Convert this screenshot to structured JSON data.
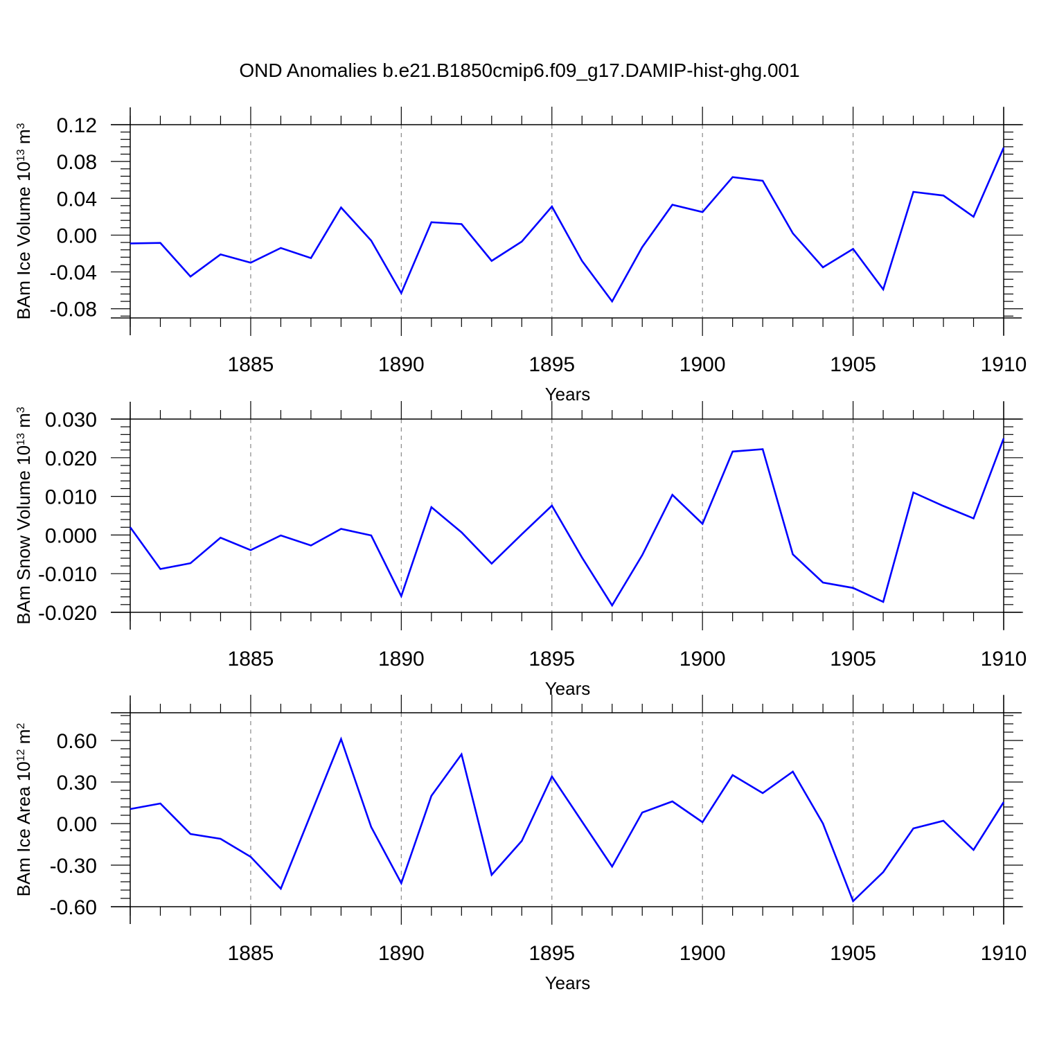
{
  "title": "OND Anomalies b.e21.B1850cmip6.f09_g17.DAMIP-hist-ghg.001",
  "line_color": "#0000ff",
  "chart_data": [
    {
      "type": "line",
      "ylabel_main": "BAm Ice Volume 10",
      "ylabel_exp": "13",
      "ylabel_unit": "m",
      "ylabel_unit_exp": "3",
      "xlabel": "Years",
      "xlim": [
        1881,
        1910
      ],
      "ylim": [
        -0.09,
        0.12
      ],
      "x_ticks": [
        1885,
        1890,
        1895,
        1900,
        1905,
        1910
      ],
      "y_ticks": [
        -0.08,
        -0.04,
        0.0,
        0.04,
        0.08,
        0.12
      ],
      "y_tick_labels": [
        "-0.08",
        "-0.04",
        "0.00",
        "0.04",
        "0.08",
        "0.12"
      ],
      "x": [
        1881,
        1882,
        1883,
        1884,
        1885,
        1886,
        1887,
        1888,
        1889,
        1890,
        1891,
        1892,
        1893,
        1894,
        1895,
        1896,
        1897,
        1898,
        1899,
        1900,
        1901,
        1902,
        1903,
        1904,
        1905,
        1906,
        1907,
        1908,
        1909,
        1910
      ],
      "series": [
        {
          "values": [
            -0.009,
            -0.0085,
            -0.045,
            -0.021,
            -0.03,
            -0.014,
            -0.025,
            0.03,
            -0.006,
            -0.063,
            0.014,
            0.012,
            -0.028,
            -0.007,
            0.031,
            -0.028,
            -0.072,
            -0.013,
            0.033,
            0.025,
            0.063,
            0.059,
            0.002,
            -0.035,
            -0.015,
            -0.059,
            0.047,
            0.043,
            0.02,
            0.095
          ]
        }
      ]
    },
    {
      "type": "line",
      "ylabel_main": "BAm Snow Volume 10",
      "ylabel_exp": "13",
      "ylabel_unit": "m",
      "ylabel_unit_exp": "3",
      "xlabel": "Years",
      "xlim": [
        1881,
        1910
      ],
      "ylim": [
        -0.02,
        0.03
      ],
      "x_ticks": [
        1885,
        1890,
        1895,
        1900,
        1905,
        1910
      ],
      "y_ticks": [
        -0.02,
        -0.01,
        0.0,
        0.01,
        0.02,
        0.03
      ],
      "y_tick_labels": [
        "-0.020",
        "-0.010",
        "0.000",
        "0.010",
        "0.020",
        "0.030"
      ],
      "x": [
        1881,
        1882,
        1883,
        1884,
        1885,
        1886,
        1887,
        1888,
        1889,
        1890,
        1891,
        1892,
        1893,
        1894,
        1895,
        1896,
        1897,
        1898,
        1899,
        1900,
        1901,
        1902,
        1903,
        1904,
        1905,
        1906,
        1907,
        1908,
        1909,
        1910
      ],
      "series": [
        {
          "values": [
            0.002,
            -0.0088,
            -0.0073,
            -0.0007,
            -0.0039,
            -0.0001,
            -0.0027,
            0.0016,
            -0.0001,
            -0.0158,
            0.0072,
            0.0007,
            -0.0074,
            0.0002,
            0.0076,
            -0.0058,
            -0.0182,
            -0.0052,
            0.0104,
            0.0029,
            0.0216,
            0.0222,
            -0.005,
            -0.0123,
            -0.0137,
            -0.0173,
            0.011,
            0.0075,
            0.0043,
            0.025
          ]
        }
      ]
    },
    {
      "type": "line",
      "ylabel_main": "BAm Ice Area 10",
      "ylabel_exp": "12",
      "ylabel_unit": "m",
      "ylabel_unit_exp": "2",
      "xlabel": "Years",
      "xlim": [
        1881,
        1910
      ],
      "ylim": [
        -0.6,
        0.8
      ],
      "x_ticks": [
        1885,
        1890,
        1895,
        1900,
        1905,
        1910
      ],
      "y_ticks": [
        -0.6,
        -0.3,
        0.0,
        0.3,
        0.6
      ],
      "y_tick_labels": [
        "-0.60",
        "-0.30",
        "0.00",
        "0.30",
        "0.60"
      ],
      "x": [
        1881,
        1882,
        1883,
        1884,
        1885,
        1886,
        1887,
        1888,
        1889,
        1890,
        1891,
        1892,
        1893,
        1894,
        1895,
        1896,
        1897,
        1898,
        1899,
        1900,
        1901,
        1902,
        1903,
        1904,
        1905,
        1906,
        1907,
        1908,
        1909,
        1910
      ],
      "series": [
        {
          "values": [
            0.105,
            0.145,
            -0.075,
            -0.11,
            -0.24,
            -0.47,
            0.07,
            0.61,
            -0.025,
            -0.43,
            0.2,
            0.5,
            -0.37,
            -0.125,
            0.34,
            0.015,
            -0.31,
            0.08,
            0.16,
            0.01,
            0.35,
            0.22,
            0.375,
            0.0,
            -0.56,
            -0.35,
            -0.035,
            0.02,
            -0.19,
            0.155
          ]
        }
      ]
    }
  ]
}
